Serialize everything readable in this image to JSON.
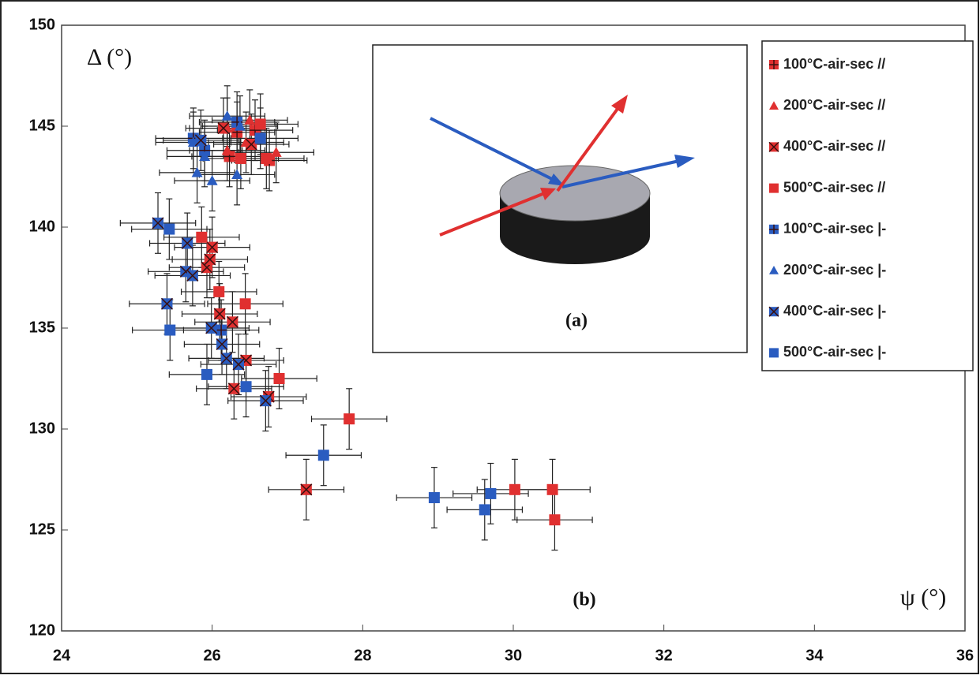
{
  "chart_data": {
    "type": "scatter",
    "x_label": "ψ (°)",
    "y_label": "Δ (°)",
    "annotations": [
      "(a)",
      "(b)"
    ],
    "xlim": [
      24,
      36
    ],
    "ylim": [
      120,
      150
    ],
    "xticks": [
      24,
      26,
      28,
      30,
      32,
      34,
      36
    ],
    "yticks": [
      120,
      125,
      130,
      135,
      140,
      145,
      150
    ],
    "series": [
      {
        "name": "100°C-air-sec //",
        "color": "#e03030",
        "marker": "plus-square",
        "xerr": 0.5,
        "yerr": 1.5,
        "x": [
          26.33,
          26.57,
          26.76,
          26.23
        ],
        "values": [
          144.7,
          144.8,
          143.3,
          143.5
        ]
      },
      {
        "name": "200°C-air-sec //",
        "color": "#e03030",
        "marker": "triangle",
        "xerr": 0.5,
        "yerr": 1.5,
        "x": [
          26.2,
          26.5,
          26.85,
          26.45,
          26.2
        ],
        "values": [
          144.9,
          145.3,
          143.7,
          144.2,
          143.8
        ]
      },
      {
        "name": "400°C-air-sec //",
        "color": "#e03030",
        "marker": "x-square",
        "xerr": 0.5,
        "yerr": 1.5,
        "x": [
          25.93,
          25.97,
          26.0,
          26.1,
          26.27,
          26.45,
          26.29,
          26.75,
          27.25,
          26.15,
          26.52
        ],
        "values": [
          138.0,
          138.4,
          139.0,
          135.7,
          135.3,
          133.4,
          132.0,
          131.6,
          127.0,
          144.9,
          144.1
        ]
      },
      {
        "name": "500°C-air-sec //",
        "color": "#e03030",
        "marker": "square",
        "xerr": 0.5,
        "yerr": 1.5,
        "x": [
          25.86,
          26.09,
          26.44,
          26.89,
          27.82,
          30.02,
          30.52,
          30.55,
          26.72,
          26.38,
          26.64
        ],
        "values": [
          139.5,
          136.8,
          136.2,
          132.5,
          130.5,
          127.0,
          127.0,
          125.5,
          143.4,
          143.4,
          145.1
        ]
      },
      {
        "name": "100°C-air-sec |-",
        "color": "#2a5cc0",
        "marker": "plus-square",
        "xerr": 0.5,
        "yerr": 1.5,
        "x": [
          25.75,
          26.12,
          26.33,
          25.9
        ],
        "values": [
          144.4,
          134.9,
          145.2,
          143.8
        ]
      },
      {
        "name": "200°C-air-sec |-",
        "color": "#2a5cc0",
        "marker": "triangle",
        "xerr": 0.5,
        "yerr": 1.5,
        "x": [
          25.8,
          25.75,
          25.9,
          26.0,
          26.2,
          26.33,
          26.37
        ],
        "values": [
          142.7,
          144.2,
          143.5,
          142.3,
          145.5,
          142.6,
          145.0
        ]
      },
      {
        "name": "400°C-air-sec |-",
        "color": "#2a5cc0",
        "marker": "x-square",
        "xerr": 0.5,
        "yerr": 1.5,
        "x": [
          25.28,
          25.67,
          25.4,
          25.65,
          25.74,
          25.99,
          26.13,
          26.19,
          26.35,
          26.71,
          25.85
        ],
        "values": [
          140.2,
          139.2,
          136.2,
          137.8,
          137.6,
          135.0,
          134.2,
          133.5,
          133.2,
          131.4,
          144.3
        ]
      },
      {
        "name": "500°C-air-sec |-",
        "color": "#2a5cc0",
        "marker": "square",
        "xerr": 0.5,
        "yerr": 1.5,
        "x": [
          25.43,
          25.44,
          25.93,
          26.45,
          27.48,
          28.95,
          29.62,
          29.7,
          26.64
        ],
        "values": [
          139.9,
          134.9,
          132.7,
          132.1,
          128.7,
          126.6,
          126.0,
          126.8,
          144.4
        ]
      }
    ]
  }
}
